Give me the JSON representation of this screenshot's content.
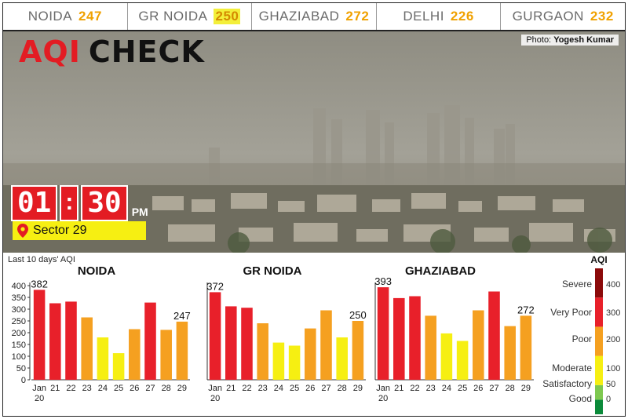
{
  "ticker": [
    {
      "city": "NOIDA",
      "value": "247",
      "highlight": false
    },
    {
      "city": "GR NOIDA",
      "value": "250",
      "highlight": true
    },
    {
      "city": "GHAZIABAD",
      "value": "272",
      "highlight": false
    },
    {
      "city": "DELHI",
      "value": "226",
      "highlight": false
    },
    {
      "city": "GURGAON",
      "value": "232",
      "highlight": false
    }
  ],
  "header": {
    "title_aqi": "AQI",
    "title_check": "CHECK"
  },
  "photo_credit": {
    "prefix": "Photo:",
    "name": "Yogesh Kumar"
  },
  "clock": {
    "hour": "01",
    "minute": "30",
    "separator": ":",
    "suffix": "PM"
  },
  "location": {
    "label": "Sector 29"
  },
  "colors": {
    "good": "#0b8a3a",
    "satisfactory": "#7ec850",
    "moderate": "#f6ef12",
    "poor": "#f5a020",
    "very_poor": "#e8202a",
    "severe": "#8b0a0a"
  },
  "chart_data": {
    "type": "bar",
    "caption": "Last 10 days' AQI",
    "categories": [
      "Jan 20",
      "21",
      "22",
      "23",
      "24",
      "25",
      "26",
      "27",
      "28",
      "29"
    ],
    "ylim": [
      0,
      400
    ],
    "yticks": [
      "0",
      "50",
      "100",
      "150",
      "200",
      "250",
      "300",
      "350",
      "400"
    ],
    "panels": [
      {
        "title": "NOIDA",
        "values": [
          382,
          325,
          332,
          265,
          180,
          113,
          215,
          328,
          212,
          247
        ],
        "first_label": "382",
        "last_label": "247"
      },
      {
        "title": "GR NOIDA",
        "values": [
          372,
          312,
          306,
          240,
          158,
          145,
          218,
          295,
          180,
          250
        ],
        "first_label": "372",
        "last_label": "250"
      },
      {
        "title": "GHAZIABAD",
        "values": [
          393,
          347,
          355,
          272,
          197,
          165,
          295,
          375,
          228,
          272
        ],
        "first_label": "393",
        "last_label": "272"
      }
    ],
    "legend": {
      "title": "AQI",
      "bands": [
        {
          "label": "Good",
          "color": "#0b8a3a",
          "from": 0,
          "to": 50
        },
        {
          "label": "Satisfactory",
          "color": "#7ec850",
          "from": 50,
          "to": 100
        },
        {
          "label": "Moderate",
          "color": "#f6ef12",
          "from": 100,
          "to": 200
        },
        {
          "label": "Poor",
          "color": "#f5a020",
          "from": 200,
          "to": 300
        },
        {
          "label": "Very Poor",
          "color": "#e8202a",
          "from": 300,
          "to": 400
        },
        {
          "label": "Severe",
          "color": "#8b0a0a",
          "from": 400,
          "to": 500
        }
      ],
      "ticks": [
        "0",
        "50",
        "100",
        "200",
        "300",
        "400"
      ]
    }
  }
}
